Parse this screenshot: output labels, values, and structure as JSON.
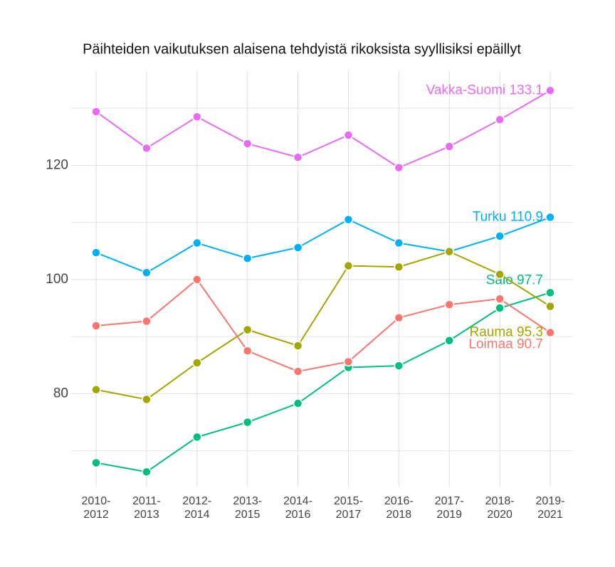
{
  "chart_data": {
    "type": "line",
    "title": "Päihteiden vaikutuksen alaisena tehdyistä rikoksista syyllisiksi epäillyt",
    "categories": [
      "2010-2012",
      "2011-2013",
      "2012-2014",
      "2013-2015",
      "2014-2016",
      "2015-2017",
      "2016-2018",
      "2017-2019",
      "2018-2020",
      "2019-2021"
    ],
    "series": [
      {
        "name": "Vakka-Suomi",
        "color": "#e76bf3",
        "values": [
          129.4,
          123.0,
          128.5,
          123.8,
          121.4,
          125.3,
          119.6,
          123.3,
          128.0,
          133.1
        ]
      },
      {
        "name": "Turku",
        "color": "#00b0f6",
        "values": [
          104.7,
          101.2,
          106.4,
          103.7,
          105.6,
          110.5,
          106.4,
          104.9,
          107.6,
          110.9
        ]
      },
      {
        "name": "Salo",
        "color": "#00bf7d",
        "values": [
          67.9,
          66.3,
          72.4,
          75.0,
          78.3,
          84.6,
          84.9,
          89.3,
          95.0,
          97.7
        ]
      },
      {
        "name": "Rauma",
        "color": "#a3a500",
        "values": [
          80.7,
          79.0,
          85.4,
          91.2,
          88.4,
          102.4,
          102.2,
          104.9,
          100.9,
          95.3
        ]
      },
      {
        "name": "Loimaa",
        "color": "#f8766d",
        "values": [
          91.9,
          92.7,
          100.0,
          87.5,
          83.9,
          85.6,
          93.3,
          95.6,
          96.6,
          90.7
        ]
      }
    ],
    "ylim": [
      63.6,
      136.5
    ],
    "yticks": [
      80,
      100,
      120
    ],
    "minor_yticks": [
      70,
      90,
      110,
      130
    ],
    "grid": true
  }
}
